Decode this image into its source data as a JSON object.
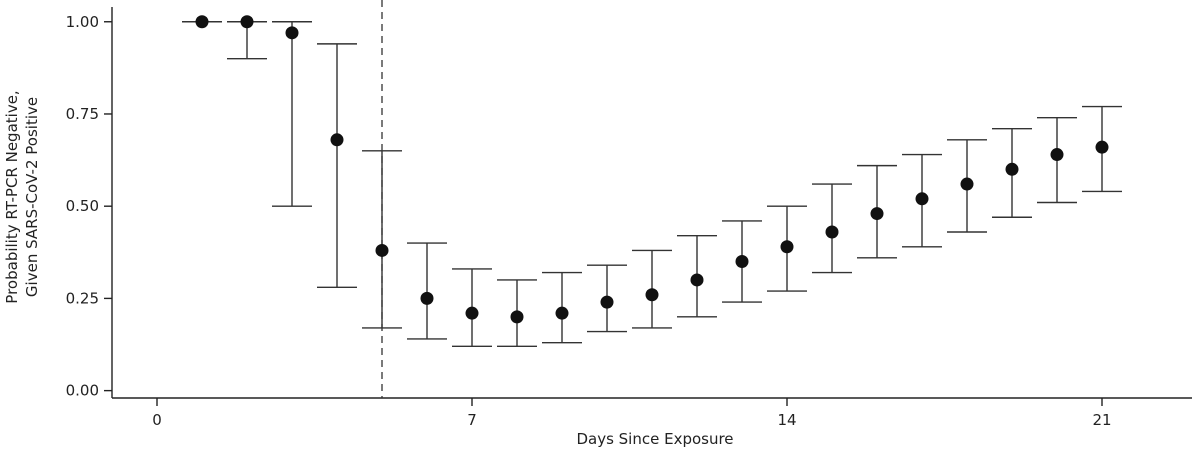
{
  "chart_data": {
    "type": "scatter",
    "xlabel": "Days Since Exposure",
    "ylabel_lines": [
      "Probability RT-PCR Negative,",
      "Given SARS-CoV-2 Positive"
    ],
    "xlim": [
      -1,
      23
    ],
    "ylim": [
      -0.02,
      1.04
    ],
    "x_ticks": [
      0,
      7,
      14,
      21
    ],
    "x_tick_labels": [
      "0",
      "7",
      "14",
      "21"
    ],
    "y_ticks": [
      0,
      0.25,
      0.5,
      0.75,
      1.0
    ],
    "y_tick_labels": [
      "0.00",
      "0.25",
      "0.50",
      "0.75",
      "1.00"
    ],
    "reference_line_x": 5,
    "grid": false,
    "legend": "none",
    "series": [
      {
        "x": [
          1,
          2,
          3,
          4,
          5,
          6,
          7,
          8,
          9,
          10,
          11,
          12,
          13,
          14,
          15,
          16,
          17,
          18,
          19,
          20,
          21
        ],
        "y": [
          1.0,
          1.0,
          0.97,
          0.68,
          0.38,
          0.25,
          0.21,
          0.2,
          0.21,
          0.24,
          0.26,
          0.3,
          0.35,
          0.39,
          0.43,
          0.48,
          0.52,
          0.56,
          0.6,
          0.64,
          0.66
        ],
        "lower": [
          1.0,
          0.9,
          0.5,
          0.28,
          0.17,
          0.14,
          0.12,
          0.12,
          0.13,
          0.16,
          0.17,
          0.2,
          0.24,
          0.27,
          0.32,
          0.36,
          0.39,
          0.43,
          0.47,
          0.51,
          0.54
        ],
        "upper": [
          1.0,
          1.0,
          1.0,
          0.94,
          0.65,
          0.4,
          0.33,
          0.3,
          0.32,
          0.34,
          0.38,
          0.42,
          0.46,
          0.5,
          0.56,
          0.61,
          0.64,
          0.68,
          0.71,
          0.74,
          0.77
        ]
      }
    ]
  }
}
